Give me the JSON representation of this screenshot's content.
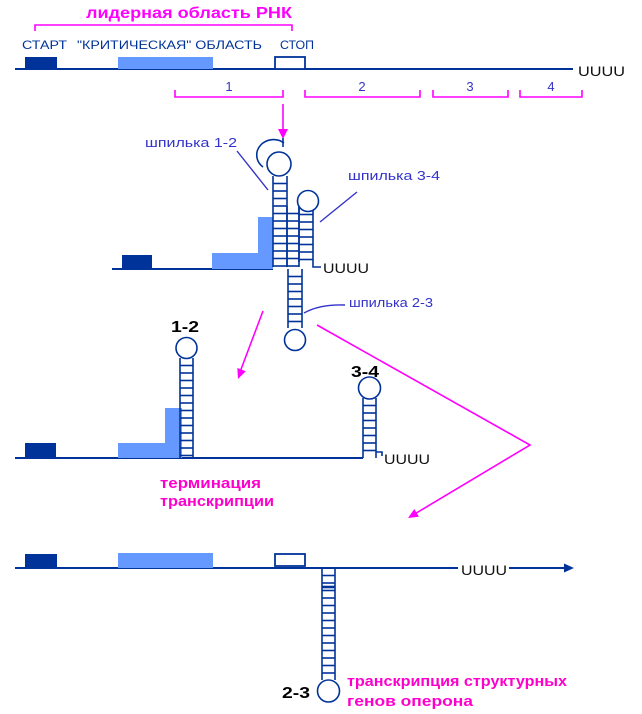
{
  "diagram": {
    "title": "лидерная область РНК",
    "gene_map": {
      "start_label": "СТАРТ",
      "critical_label": "\"КРИТИЧЕСКАЯ\" ОБЛАСТЬ",
      "stop_label": "СТОП",
      "poly_u": "UUUU",
      "segments": [
        "1",
        "2",
        "3",
        "4"
      ]
    },
    "hairpin_labels": {
      "h12": "шпилька 1-2",
      "h34": "шпилька 3-4",
      "h23": "шпилька 2-3"
    },
    "middle_structure": {
      "poly_u": "UUUU"
    },
    "termination_structure": {
      "pair12": "1-2",
      "pair34": "3-4",
      "poly_u": "UUUU",
      "caption_line1": "терминация",
      "caption_line2": "транскрипции"
    },
    "readthrough_structure": {
      "pair23": "2-3",
      "poly_u": "UUUU",
      "caption_line1": "транскрипция структурных",
      "caption_line2": "генов оперона"
    },
    "colors": {
      "navy": "#003399",
      "light_blue": "#6699FF",
      "magenta": "#FF00FF",
      "caption_magenta": "#FF00CC",
      "label_blue": "#3333CC",
      "black": "#000000"
    }
  }
}
